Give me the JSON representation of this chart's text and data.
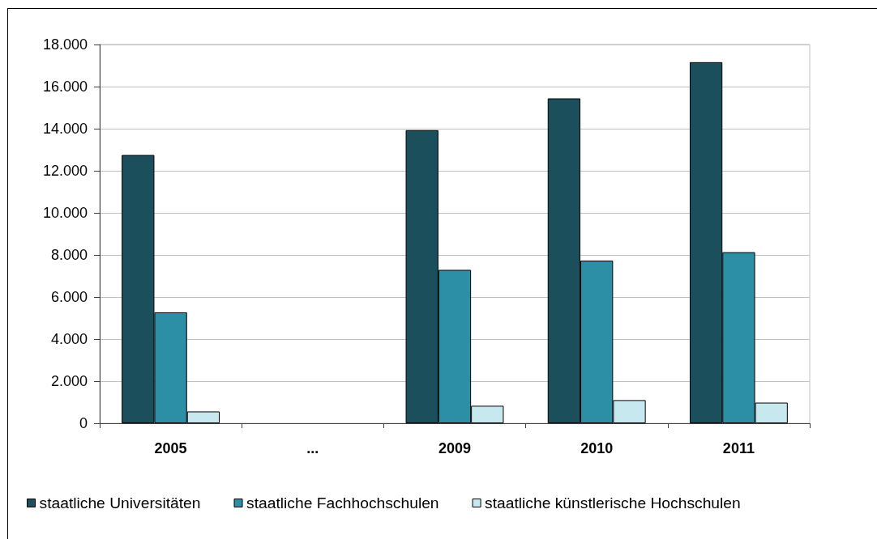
{
  "chart_data": {
    "type": "bar",
    "categories": [
      "2005",
      "...",
      "2009",
      "2010",
      "2011"
    ],
    "series": [
      {
        "name": "staatliche Universitäten",
        "color": "#1b4f5c",
        "values": [
          12750,
          null,
          13930,
          15440,
          17160
        ]
      },
      {
        "name": "staatliche Fachhochschulen",
        "color": "#2d8fa6",
        "values": [
          5270,
          null,
          7290,
          7730,
          8130
        ]
      },
      {
        "name": "staatliche künstlerische Hochschulen",
        "color": "#c7e8ee",
        "values": [
          560,
          null,
          830,
          1100,
          980
        ]
      }
    ],
    "ylim": [
      0,
      18000
    ],
    "yticks": [
      0,
      {
        "value": 2000,
        "label": "2.000"
      },
      {
        "value": 4000,
        "label": "4.000"
      },
      {
        "value": 6000,
        "label": "6.000"
      },
      {
        "value": 8000,
        "label": "8.000"
      },
      {
        "value": 10000,
        "label": "10.000"
      },
      {
        "value": 12000,
        "label": "12.000"
      },
      {
        "value": 14000,
        "label": "14.000"
      },
      {
        "value": 16000,
        "label": "16.000"
      },
      {
        "value": 18000,
        "label": "18.000"
      }
    ],
    "grid": "y",
    "legend": "bottom"
  }
}
